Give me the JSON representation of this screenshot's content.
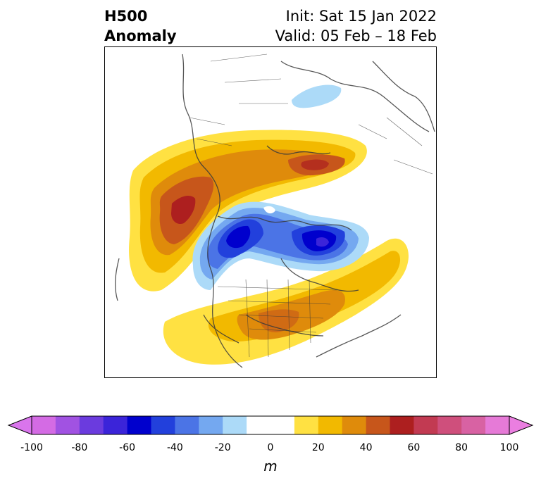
{
  "title": {
    "left_line1": "H500",
    "left_line2": "Anomaly",
    "right_line1": "Init: Sat 15 Jan 2022",
    "right_line2": "Valid: 05 Feb – 18 Feb"
  },
  "colorbar": {
    "units": "m",
    "tick_labels": [
      "-100",
      "-80",
      "-60",
      "-40",
      "-20",
      "0",
      "20",
      "40",
      "60",
      "80",
      "100"
    ],
    "levels": [
      -100,
      -90,
      -80,
      -70,
      -60,
      -50,
      -40,
      -30,
      -20,
      -10,
      10,
      20,
      30,
      40,
      50,
      60,
      70,
      80,
      90,
      100
    ],
    "colors": [
      "#d46be4",
      "#a152e2",
      "#6b3bde",
      "#3b24d9",
      "#0000cd",
      "#2240dc",
      "#4b74e6",
      "#74a8f0",
      "#acdaf8",
      "#ffffff",
      "#ffe142",
      "#f2b900",
      "#df8b0b",
      "#c7561b",
      "#ad1f1f",
      "#c23a52",
      "#cf4f7c",
      "#d862a3",
      "#e67ad7"
    ],
    "under_color": "#d975ec",
    "over_color": "#ea7ee0"
  },
  "map": {
    "projection": "north polar stereographic",
    "anomaly_colors": {
      "yellow": "#ffe142",
      "gold": "#f2b900",
      "orange": "#df8b0b",
      "dark_orange": "#c7561b",
      "red": "#ad1f1f",
      "light_blue": "#acdaf8",
      "sky_blue": "#74a8f0",
      "blue": "#4b74e6",
      "royal_blue": "#2240dc",
      "navy": "#0000cd",
      "indigo": "#3b24d9"
    }
  }
}
